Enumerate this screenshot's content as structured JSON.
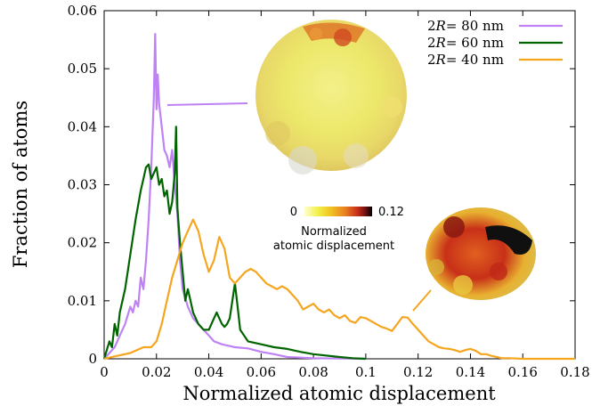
{
  "chart_data": {
    "type": "line",
    "xlabel": "Normalized atomic displacement",
    "ylabel": "Fraction of atoms",
    "xlim": [
      0,
      0.18
    ],
    "ylim": [
      0,
      0.06
    ],
    "xticks": [
      "0",
      "0.02",
      "0.04",
      "0.06",
      "0.08",
      "0.1",
      "0.12",
      "0.14",
      "0.16",
      "0.18"
    ],
    "yticks": [
      "0",
      "0.01",
      "0.02",
      "0.03",
      "0.04",
      "0.05",
      "0.06"
    ],
    "grid": false,
    "legend": {
      "placement": "top-right",
      "entries": [
        {
          "prefix": "2",
          "italic": "R",
          "suffix": "= 80 nm"
        },
        {
          "prefix": "2",
          "italic": "R",
          "suffix": "= 60 nm"
        },
        {
          "prefix": "2",
          "italic": "R",
          "suffix": "= 40 nm"
        }
      ]
    },
    "colorbar": {
      "min_label": "0",
      "max_label": "0.12",
      "title_line1": "Normalized",
      "title_line2": "atomic displacement",
      "colors": [
        "#ffffd0",
        "#f2f04a",
        "#f0c020",
        "#e88020",
        "#c83018",
        "#701010",
        "#000000"
      ]
    },
    "series": [
      {
        "name": "2R= 80 nm",
        "color": "#bf82f5",
        "x": [
          0,
          0.002,
          0.004,
          0.006,
          0.008,
          0.01,
          0.011,
          0.012,
          0.013,
          0.014,
          0.015,
          0.016,
          0.017,
          0.018,
          0.019,
          0.0195,
          0.02,
          0.0205,
          0.021,
          0.022,
          0.023,
          0.024,
          0.025,
          0.026,
          0.027,
          0.028,
          0.029,
          0.03,
          0.032,
          0.034,
          0.036,
          0.038,
          0.04,
          0.042,
          0.045,
          0.05,
          0.055,
          0.06,
          0.065,
          0.07,
          0.08,
          0.09,
          0.1
        ],
        "y": [
          0,
          0.001,
          0.002,
          0.004,
          0.006,
          0.009,
          0.008,
          0.01,
          0.009,
          0.014,
          0.012,
          0.017,
          0.024,
          0.033,
          0.045,
          0.056,
          0.043,
          0.049,
          0.044,
          0.04,
          0.036,
          0.035,
          0.033,
          0.036,
          0.03,
          0.025,
          0.017,
          0.012,
          0.009,
          0.007,
          0.006,
          0.005,
          0.004,
          0.003,
          0.0025,
          0.002,
          0.0018,
          0.0012,
          0.0008,
          0.0003,
          0.0001,
          5e-05,
          0
        ]
      },
      {
        "name": "2R= 60 nm",
        "color": "#006400",
        "x": [
          0,
          0.002,
          0.003,
          0.004,
          0.005,
          0.006,
          0.008,
          0.01,
          0.012,
          0.014,
          0.015,
          0.016,
          0.017,
          0.018,
          0.019,
          0.02,
          0.021,
          0.022,
          0.023,
          0.024,
          0.025,
          0.026,
          0.027,
          0.0275,
          0.028,
          0.029,
          0.03,
          0.031,
          0.032,
          0.033,
          0.034,
          0.036,
          0.038,
          0.04,
          0.042,
          0.043,
          0.044,
          0.045,
          0.046,
          0.047,
          0.048,
          0.049,
          0.05,
          0.051,
          0.052,
          0.055,
          0.06,
          0.065,
          0.07,
          0.075,
          0.08,
          0.09,
          0.095,
          0.1
        ],
        "y": [
          0,
          0.003,
          0.002,
          0.006,
          0.004,
          0.008,
          0.012,
          0.018,
          0.024,
          0.029,
          0.031,
          0.033,
          0.0335,
          0.031,
          0.032,
          0.033,
          0.03,
          0.031,
          0.028,
          0.029,
          0.025,
          0.027,
          0.032,
          0.04,
          0.026,
          0.02,
          0.015,
          0.01,
          0.012,
          0.01,
          0.008,
          0.006,
          0.005,
          0.005,
          0.007,
          0.008,
          0.007,
          0.006,
          0.0055,
          0.006,
          0.007,
          0.01,
          0.013,
          0.009,
          0.005,
          0.003,
          0.0025,
          0.002,
          0.0017,
          0.0012,
          0.0008,
          0.0003,
          0.0001,
          0
        ]
      },
      {
        "name": "2R= 40 nm",
        "color": "#f5a51e",
        "x": [
          0,
          0.005,
          0.01,
          0.015,
          0.018,
          0.02,
          0.022,
          0.024,
          0.026,
          0.028,
          0.03,
          0.032,
          0.034,
          0.036,
          0.038,
          0.04,
          0.042,
          0.044,
          0.046,
          0.048,
          0.05,
          0.052,
          0.054,
          0.056,
          0.058,
          0.06,
          0.062,
          0.064,
          0.066,
          0.068,
          0.07,
          0.072,
          0.074,
          0.076,
          0.078,
          0.08,
          0.082,
          0.084,
          0.086,
          0.088,
          0.09,
          0.092,
          0.094,
          0.096,
          0.098,
          0.1,
          0.102,
          0.104,
          0.106,
          0.108,
          0.11,
          0.112,
          0.114,
          0.116,
          0.118,
          0.12,
          0.122,
          0.124,
          0.126,
          0.128,
          0.13,
          0.132,
          0.134,
          0.136,
          0.138,
          0.14,
          0.142,
          0.144,
          0.146,
          0.148,
          0.15,
          0.152,
          0.155,
          0.16,
          0.17,
          0.18
        ],
        "y": [
          0,
          0.0005,
          0.001,
          0.002,
          0.002,
          0.003,
          0.006,
          0.01,
          0.014,
          0.017,
          0.02,
          0.022,
          0.024,
          0.022,
          0.018,
          0.015,
          0.017,
          0.021,
          0.019,
          0.014,
          0.013,
          0.014,
          0.015,
          0.0155,
          0.015,
          0.014,
          0.013,
          0.0125,
          0.012,
          0.0125,
          0.012,
          0.011,
          0.01,
          0.0085,
          0.009,
          0.0095,
          0.0085,
          0.008,
          0.0085,
          0.0075,
          0.007,
          0.0075,
          0.0065,
          0.0062,
          0.0072,
          0.007,
          0.0065,
          0.006,
          0.0055,
          0.0052,
          0.0048,
          0.006,
          0.0072,
          0.0071,
          0.006,
          0.005,
          0.004,
          0.003,
          0.0025,
          0.002,
          0.0018,
          0.0017,
          0.0015,
          0.0012,
          0.0015,
          0.0017,
          0.0014,
          0.0008,
          0.0008,
          0.0005,
          0.0003,
          0.0001,
          0.0001,
          0,
          0,
          0
        ]
      }
    ]
  }
}
